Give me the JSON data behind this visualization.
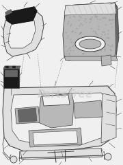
{
  "bg_color": "#f0f0f0",
  "wm_color": "#c8c8c8",
  "lc": "#444444",
  "dc": "#111111",
  "fl": "#e0e0e0",
  "fm": "#b8b8b8",
  "fd": "#666666",
  "black": "#1a1a1a",
  "figsize": [
    1.8,
    2.4
  ],
  "dpi": 100
}
